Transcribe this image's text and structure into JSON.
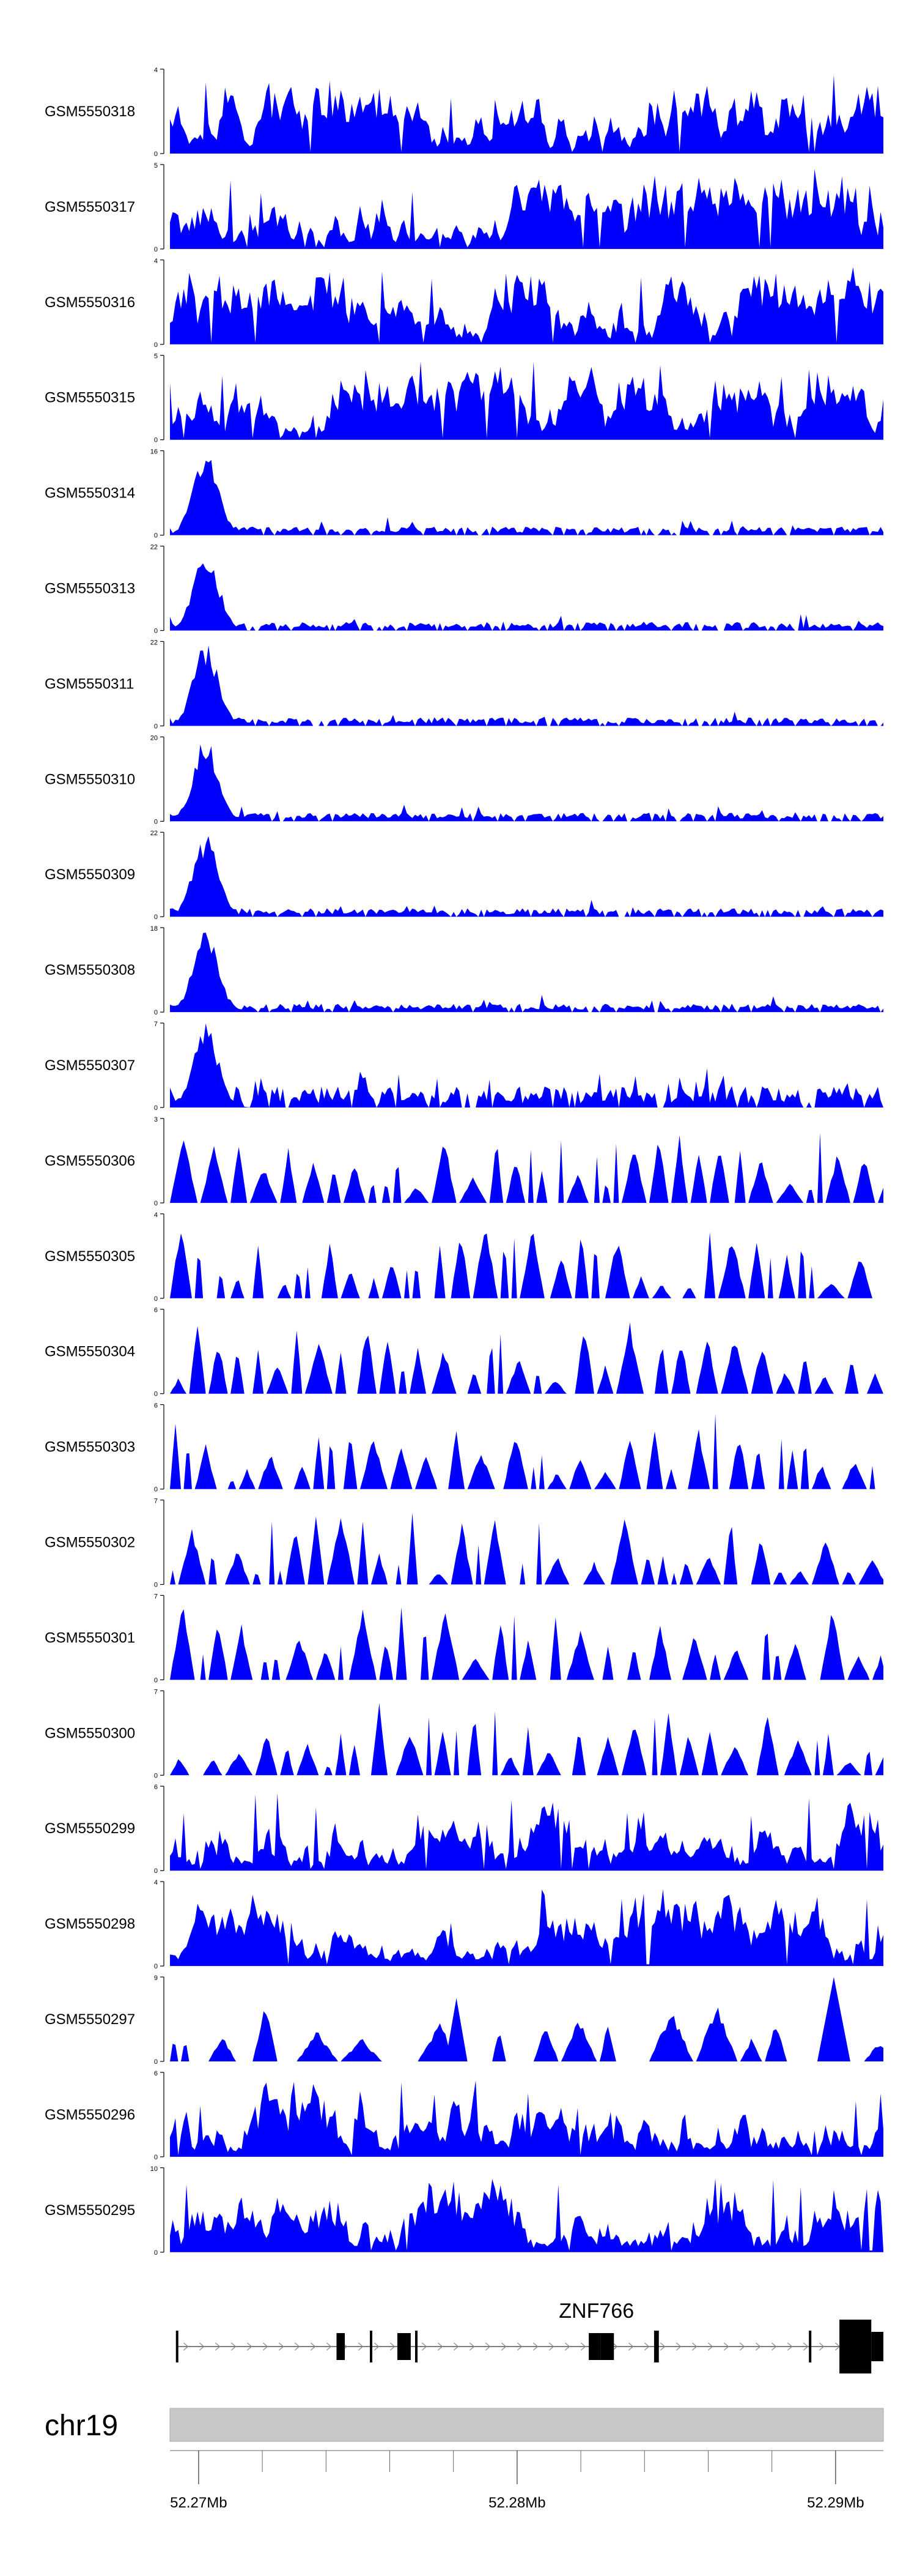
{
  "chart_data": {
    "type": "area",
    "title": "",
    "xlabel": "",
    "ylabel": "",
    "color": "#0000ff",
    "xlim": [
      52.2691,
      52.2915
    ],
    "tracks": [
      {
        "name": "GSM5550318",
        "ymax": 4,
        "seed": 318,
        "kind": "uniform"
      },
      {
        "name": "GSM5550317",
        "ymax": 5,
        "seed": 317,
        "kind": "uniform"
      },
      {
        "name": "GSM5550316",
        "ymax": 4,
        "seed": 316,
        "kind": "uniform"
      },
      {
        "name": "GSM5550315",
        "ymax": 5,
        "seed": 315,
        "kind": "uniform"
      },
      {
        "name": "GSM5550314",
        "ymax": 16,
        "seed": 314,
        "kind": "tss"
      },
      {
        "name": "GSM5550313",
        "ymax": 22,
        "seed": 313,
        "kind": "tss"
      },
      {
        "name": "GSM5550311",
        "ymax": 22,
        "seed": 311,
        "kind": "tss"
      },
      {
        "name": "GSM5550310",
        "ymax": 20,
        "seed": 310,
        "kind": "tss"
      },
      {
        "name": "GSM5550309",
        "ymax": 22,
        "seed": 309,
        "kind": "tss"
      },
      {
        "name": "GSM5550308",
        "ymax": 18,
        "seed": 308,
        "kind": "tss"
      },
      {
        "name": "GSM5550307",
        "ymax": 7,
        "seed": 307,
        "kind": "tss-sparse"
      },
      {
        "name": "GSM5550306",
        "ymax": 3,
        "seed": 306,
        "kind": "sparse"
      },
      {
        "name": "GSM5550305",
        "ymax": 4,
        "seed": 305,
        "kind": "sparse"
      },
      {
        "name": "GSM5550304",
        "ymax": 6,
        "seed": 304,
        "kind": "sparse"
      },
      {
        "name": "GSM5550303",
        "ymax": 6,
        "seed": 303,
        "kind": "sparse"
      },
      {
        "name": "GSM5550302",
        "ymax": 7,
        "seed": 302,
        "kind": "sparse"
      },
      {
        "name": "GSM5550301",
        "ymax": 7,
        "seed": 301,
        "kind": "sparse"
      },
      {
        "name": "GSM5550300",
        "ymax": 7,
        "seed": 300,
        "kind": "sparse"
      },
      {
        "name": "GSM5550299",
        "ymax": 6,
        "seed": 299,
        "kind": "uniform"
      },
      {
        "name": "GSM5550298",
        "ymax": 4,
        "seed": 298,
        "kind": "uniform"
      },
      {
        "name": "GSM5550297",
        "ymax": 9,
        "seed": 297,
        "kind": "very-sparse"
      },
      {
        "name": "GSM5550296",
        "ymax": 6,
        "seed": 296,
        "kind": "uniform"
      },
      {
        "name": "GSM5550295",
        "ymax": 10,
        "seed": 295,
        "kind": "uniform"
      }
    ],
    "gene": {
      "name": "ZNF766",
      "start": 52.2693,
      "end": 52.2915,
      "exons": [
        {
          "start": 52.2693,
          "end": 52.26935,
          "size": "thin"
        },
        {
          "start": 52.27433,
          "end": 52.27459,
          "size": "med"
        },
        {
          "start": 52.27539,
          "end": 52.27544,
          "size": "thin"
        },
        {
          "start": 52.27624,
          "end": 52.27666,
          "size": "med"
        },
        {
          "start": 52.2768,
          "end": 52.27687,
          "size": "thin"
        },
        {
          "start": 52.28225,
          "end": 52.28263,
          "size": "med"
        },
        {
          "start": 52.28263,
          "end": 52.28304,
          "size": "med"
        },
        {
          "start": 52.2843,
          "end": 52.28445,
          "size": "thin"
        },
        {
          "start": 52.28917,
          "end": 52.28923,
          "size": "thin"
        },
        {
          "start": 52.29012,
          "end": 52.29112,
          "size": "large"
        },
        {
          "start": 52.29112,
          "end": 52.2915,
          "size": "med"
        }
      ]
    },
    "ideogram": {
      "chromosome": "chr19",
      "ticks": [
        52.27,
        52.28,
        52.29
      ],
      "tick_labels": [
        "52.27Mb",
        "52.28Mb",
        "52.29Mb"
      ],
      "minor_ticks": [
        52.272,
        52.274,
        52.276,
        52.278,
        52.282,
        52.284,
        52.286,
        52.288
      ]
    }
  }
}
